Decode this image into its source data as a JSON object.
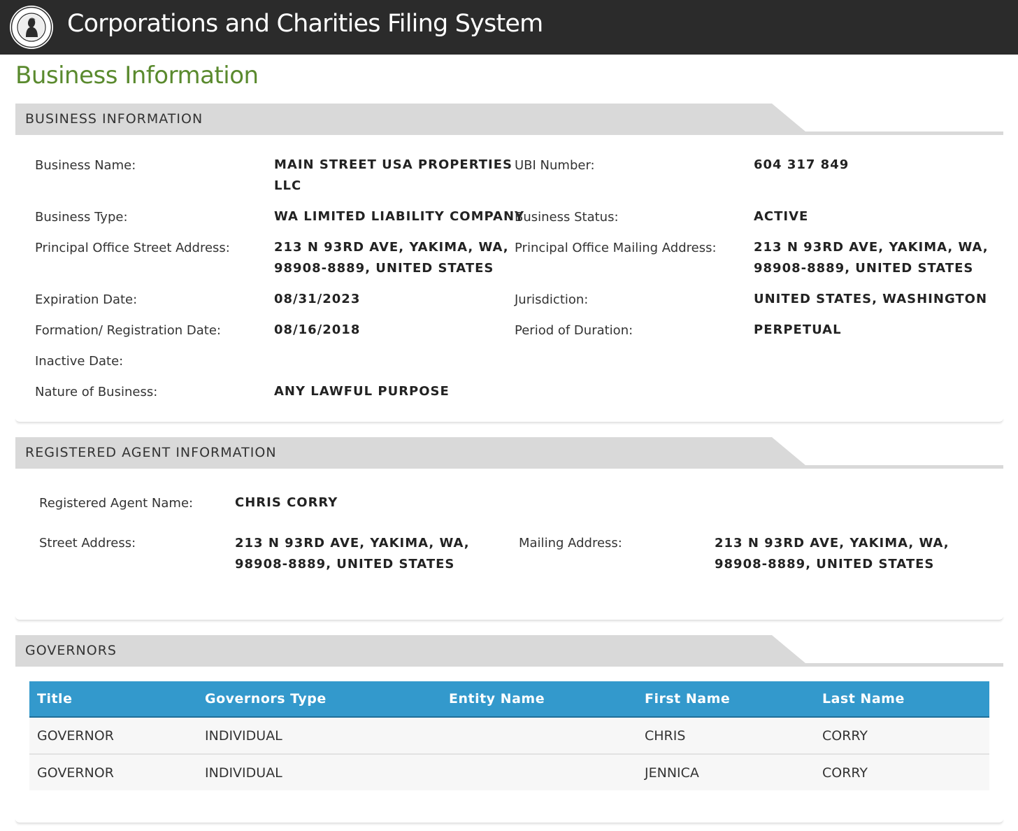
{
  "header": {
    "app_title": "Corporations and Charities Filing System"
  },
  "page_title": "Business Information",
  "business_info": {
    "heading": "BUSINESS INFORMATION",
    "business_name_label": "Business Name:",
    "business_name_line1": "MAIN STREET USA PROPERTIES",
    "business_name_line2": "LLC",
    "ubi_label": "UBI Number:",
    "ubi_value": "604 317 849",
    "business_type_label": "Business Type:",
    "business_type_value": "WA LIMITED LIABILITY COMPANY",
    "status_label": "Business Status:",
    "status_value": "ACTIVE",
    "po_street_label": "Principal Office Street Address:",
    "po_street_line1": "213 N 93RD AVE, YAKIMA, WA,",
    "po_street_line2": "98908-8889, UNITED STATES",
    "po_mailing_label": "Principal Office Mailing Address:",
    "po_mailing_line1": "213 N 93RD AVE, YAKIMA, WA,",
    "po_mailing_line2": "98908-8889, UNITED STATES",
    "expiration_label": "Expiration Date:",
    "expiration_value": "08/31/2023",
    "jurisdiction_label": "Jurisdiction:",
    "jurisdiction_value": "UNITED STATES, WASHINGTON",
    "formation_label": "Formation/ Registration Date:",
    "formation_value": "08/16/2018",
    "duration_label": "Period of Duration:",
    "duration_value": "PERPETUAL",
    "inactive_label": "Inactive Date:",
    "nature_label": "Nature of Business:",
    "nature_value": "ANY LAWFUL PURPOSE"
  },
  "registered_agent": {
    "heading": "REGISTERED AGENT INFORMATION",
    "name_label": "Registered Agent Name:",
    "name_value": "CHRIS CORRY",
    "street_label": "Street Address:",
    "street_line1": "213 N 93RD AVE, YAKIMA, WA,",
    "street_line2": "98908-8889, UNITED STATES",
    "mailing_label": "Mailing Address:",
    "mailing_line1": "213 N 93RD AVE, YAKIMA, WA,",
    "mailing_line2": "98908-8889, UNITED STATES"
  },
  "governors": {
    "heading": "GOVERNORS",
    "columns": [
      "Title",
      "Governors Type",
      "Entity Name",
      "First Name",
      "Last Name"
    ],
    "rows": [
      [
        "GOVERNOR",
        "INDIVIDUAL",
        "",
        "CHRIS",
        "CORRY"
      ],
      [
        "GOVERNOR",
        "INDIVIDUAL",
        "",
        "JENNICA",
        "CORRY"
      ]
    ]
  },
  "colors": {
    "topbar": "#2b2b2b",
    "page_title": "#5a8a2e",
    "section_header": "#d9d9d9",
    "table_header": "#3399cc"
  },
  "icons": {
    "seal": "state-seal-icon"
  }
}
